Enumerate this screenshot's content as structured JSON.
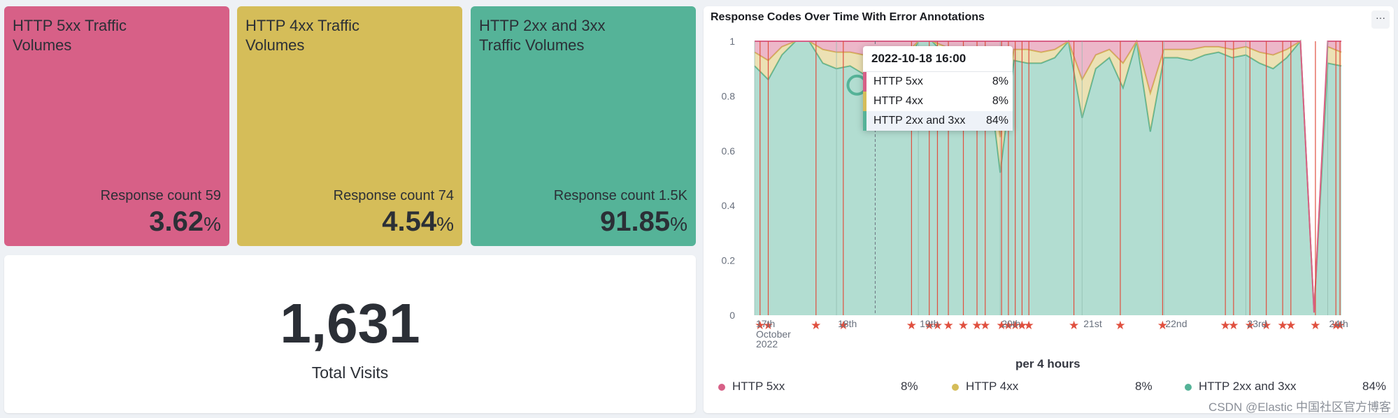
{
  "metrics": [
    {
      "title": "HTTP 5xx Traffic Volumes",
      "sub": "Response count 59",
      "value": "3.62",
      "unit": "%"
    },
    {
      "title": "HTTP 4xx Traffic Volumes",
      "sub": "Response count 74",
      "value": "4.54",
      "unit": "%"
    },
    {
      "title": "HTTP 2xx and 3xx Traffic Volumes",
      "sub": "Response count 1.5K",
      "value": "91.85",
      "unit": "%"
    }
  ],
  "visits": {
    "value": "1,631",
    "label": "Total Visits"
  },
  "chart": {
    "title": "Response Codes Over Time With Error Annotations",
    "menu_icon": "ellipsis-icon",
    "x_title": "per 4 hours",
    "tooltip": {
      "date": "2022-10-18 16:00",
      "rows": [
        {
          "label": "HTTP 5xx",
          "value": "8%"
        },
        {
          "label": "HTTP 4xx",
          "value": "8%"
        },
        {
          "label": "HTTP 2xx and 3xx",
          "value": "84%"
        }
      ]
    },
    "legend": [
      {
        "label": "HTTP 5xx",
        "value": "8%"
      },
      {
        "label": "HTTP 4xx",
        "value": "8%"
      },
      {
        "label": "HTTP 2xx and 3xx",
        "value": "84%"
      }
    ],
    "colors": {
      "c5xx": "#d76087",
      "c4xx": "#d5bd59",
      "c2xx": "#55b398"
    }
  },
  "chart_data": {
    "type": "area",
    "stacked": true,
    "percentage": true,
    "title": "Response Codes Over Time With Error Annotations",
    "xlabel": "per 4 hours",
    "ylabel": "",
    "ylim": [
      0,
      1
    ],
    "yticks": [
      "0",
      "0.2",
      "0.4",
      "0.6",
      "0.8",
      "1"
    ],
    "x_tick_labels": [
      {
        "slot": 0,
        "text": "17th",
        "sub": [
          "October",
          "2022"
        ]
      },
      {
        "slot": 6,
        "text": "18th"
      },
      {
        "slot": 12,
        "text": "19th"
      },
      {
        "slot": 18,
        "text": "20th"
      },
      {
        "slot": 24,
        "text": "21st"
      },
      {
        "slot": 30,
        "text": "22nd"
      },
      {
        "slot": 36,
        "text": "23rd"
      },
      {
        "slot": 42,
        "text": "24th"
      }
    ],
    "slots": 44,
    "series": [
      {
        "name": "HTTP 2xx and 3xx",
        "values": [
          0.91,
          0.86,
          0.95,
          1,
          1,
          0.92,
          0.9,
          0.91,
          0.88,
          0.84,
          0.85,
          0.9,
          1,
          1,
          0.95,
          0.91,
          0.9,
          0.94,
          0.52,
          0.93,
          0.92,
          0.92,
          0.94,
          1,
          0.72,
          0.9,
          0.94,
          0.83,
          1,
          0.67,
          0.94,
          0.94,
          0.93,
          0.95,
          0.96,
          0.94,
          0.95,
          0.92,
          0.9,
          0.94,
          1,
          0.01,
          0.92,
          0.91
        ]
      },
      {
        "name": "HTTP 4xx",
        "values": [
          0.05,
          0.07,
          0.03,
          0,
          0,
          0.05,
          0.06,
          0.05,
          0.07,
          0.08,
          0.08,
          0.05,
          0,
          0,
          0.03,
          0.05,
          0.05,
          0.03,
          0.13,
          0.04,
          0.05,
          0.04,
          0.03,
          0,
          0.14,
          0.05,
          0.03,
          0.09,
          0,
          0.14,
          0.03,
          0.03,
          0.04,
          0.03,
          0.02,
          0.03,
          0.03,
          0.04,
          0.05,
          0.03,
          0,
          0,
          0.06,
          0.05
        ]
      },
      {
        "name": "HTTP 5xx",
        "values": [
          0.04,
          0.07,
          0.02,
          0,
          0,
          0.03,
          0.04,
          0.04,
          0.05,
          0.08,
          0.07,
          0.05,
          0,
          0,
          0.02,
          0.04,
          0.05,
          0.03,
          0.35,
          0.03,
          0.03,
          0.04,
          0.03,
          0,
          0.14,
          0.05,
          0.03,
          0.08,
          0,
          0.19,
          0.03,
          0.03,
          0.03,
          0.02,
          0.02,
          0.03,
          0.02,
          0.04,
          0.05,
          0.03,
          0,
          0,
          0.02,
          0.04
        ]
      }
    ],
    "annotation_slots": [
      0.4,
      1,
      4.5,
      6.5,
      11.5,
      12.8,
      13.4,
      14.2,
      15.3,
      16.3,
      16.9,
      18.1,
      18.6,
      19.1,
      19.6,
      20.1,
      23.4,
      26.8,
      29.9,
      34.5,
      35.1,
      36.3,
      37.5,
      38.7,
      39.3,
      41.1,
      42.6,
      42.9
    ],
    "crosshair_slot": 7.3
  }
}
